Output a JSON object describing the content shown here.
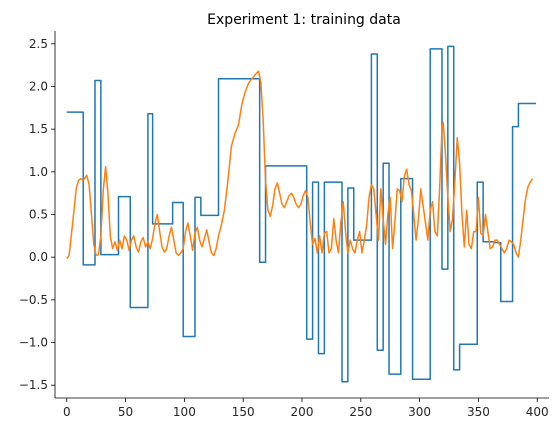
{
  "chart_data": {
    "type": "line",
    "title": "Experiment 1: training data",
    "xlabel": "",
    "ylabel": "",
    "xlim": [
      -10,
      410
    ],
    "ylim": [
      -1.65,
      2.65
    ],
    "grid": false,
    "xticks": [
      {
        "value": 0,
        "label": "0"
      },
      {
        "value": 50,
        "label": "50"
      },
      {
        "value": 100,
        "label": "100"
      },
      {
        "value": 150,
        "label": "150"
      },
      {
        "value": 200,
        "label": "200"
      },
      {
        "value": 250,
        "label": "250"
      },
      {
        "value": 300,
        "label": "300"
      },
      {
        "value": 350,
        "label": "350"
      },
      {
        "value": 400,
        "label": "400"
      }
    ],
    "yticks": [
      {
        "value": -1.5,
        "label": "−1.5"
      },
      {
        "value": -1.0,
        "label": "−1.0"
      },
      {
        "value": -0.5,
        "label": "−0.5"
      },
      {
        "value": 0.0,
        "label": "0.0"
      },
      {
        "value": 0.5,
        "label": "0.5"
      },
      {
        "value": 1.0,
        "label": "1.0"
      },
      {
        "value": 1.5,
        "label": "1.5"
      },
      {
        "value": 2.0,
        "label": "2.0"
      },
      {
        "value": 2.5,
        "label": "2.5"
      }
    ],
    "series": [
      {
        "color": "#1f77b4",
        "step": true,
        "points": [
          [
            0,
            1.7
          ],
          [
            14,
            1.7
          ],
          [
            14,
            -0.09
          ],
          [
            24,
            -0.09
          ],
          [
            24,
            2.07
          ],
          [
            29,
            2.07
          ],
          [
            29,
            0.03
          ],
          [
            44,
            0.03
          ],
          [
            44,
            0.71
          ],
          [
            54,
            0.71
          ],
          [
            54,
            -0.59
          ],
          [
            69,
            -0.59
          ],
          [
            69,
            1.68
          ],
          [
            73,
            1.68
          ],
          [
            73,
            0.39
          ],
          [
            90,
            0.39
          ],
          [
            90,
            0.64
          ],
          [
            99,
            0.64
          ],
          [
            99,
            -0.93
          ],
          [
            109,
            -0.93
          ],
          [
            109,
            0.7
          ],
          [
            114,
            0.7
          ],
          [
            114,
            0.49
          ],
          [
            129,
            0.49
          ],
          [
            129,
            2.09
          ],
          [
            164,
            2.09
          ],
          [
            164,
            -0.06
          ],
          [
            169,
            -0.06
          ],
          [
            169,
            1.07
          ],
          [
            204,
            1.07
          ],
          [
            204,
            -0.96
          ],
          [
            209,
            -0.96
          ],
          [
            209,
            0.88
          ],
          [
            214,
            0.88
          ],
          [
            214,
            -1.13
          ],
          [
            219,
            -1.13
          ],
          [
            219,
            0.88
          ],
          [
            234,
            0.88
          ],
          [
            234,
            -1.46
          ],
          [
            239,
            -1.46
          ],
          [
            239,
            0.81
          ],
          [
            244,
            0.81
          ],
          [
            244,
            0.2
          ],
          [
            259,
            0.2
          ],
          [
            259,
            2.38
          ],
          [
            264,
            2.38
          ],
          [
            264,
            -1.09
          ],
          [
            269,
            -1.09
          ],
          [
            269,
            1.1
          ],
          [
            274,
            1.1
          ],
          [
            274,
            -1.37
          ],
          [
            284,
            -1.37
          ],
          [
            284,
            0.92
          ],
          [
            294,
            0.92
          ],
          [
            294,
            -1.43
          ],
          [
            309,
            -1.43
          ],
          [
            309,
            2.44
          ],
          [
            319,
            2.44
          ],
          [
            319,
            -0.14
          ],
          [
            324,
            -0.14
          ],
          [
            324,
            2.47
          ],
          [
            329,
            2.47
          ],
          [
            329,
            -1.32
          ],
          [
            334,
            -1.32
          ],
          [
            334,
            -1.02
          ],
          [
            349,
            -1.02
          ],
          [
            349,
            0.88
          ],
          [
            354,
            0.88
          ],
          [
            354,
            0.18
          ],
          [
            364,
            0.18
          ],
          [
            364,
            0.17
          ],
          [
            369,
            0.17
          ],
          [
            369,
            -0.52
          ],
          [
            379,
            -0.52
          ],
          [
            379,
            1.53
          ],
          [
            384,
            1.53
          ],
          [
            384,
            1.8
          ],
          [
            399,
            1.8
          ]
        ]
      },
      {
        "color": "#ff7f0e",
        "step": false,
        "points": [
          [
            0,
            -0.02
          ],
          [
            2,
            0.02
          ],
          [
            5,
            0.4
          ],
          [
            8,
            0.8
          ],
          [
            10,
            0.9
          ],
          [
            12,
            0.92
          ],
          [
            14,
            0.9
          ],
          [
            17,
            0.96
          ],
          [
            19,
            0.85
          ],
          [
            21,
            0.5
          ],
          [
            23,
            0.15
          ],
          [
            25,
            0.02
          ],
          [
            27,
            0.03
          ],
          [
            29,
            0.25
          ],
          [
            31,
            0.78
          ],
          [
            33,
            1.06
          ],
          [
            35,
            0.75
          ],
          [
            37,
            0.25
          ],
          [
            39,
            0.1
          ],
          [
            41,
            0.18
          ],
          [
            43,
            0.08
          ],
          [
            45,
            0.2
          ],
          [
            47,
            0.1
          ],
          [
            49,
            0.25
          ],
          [
            51,
            0.2
          ],
          [
            53,
            0.08
          ],
          [
            55,
            0.2
          ],
          [
            57,
            0.25
          ],
          [
            59,
            0.12
          ],
          [
            61,
            0.06
          ],
          [
            63,
            0.18
          ],
          [
            65,
            0.23
          ],
          [
            67,
            0.12
          ],
          [
            69,
            0.18
          ],
          [
            71,
            0.1
          ],
          [
            73,
            0.22
          ],
          [
            75,
            0.4
          ],
          [
            77,
            0.5
          ],
          [
            79,
            0.3
          ],
          [
            81,
            0.12
          ],
          [
            83,
            0.06
          ],
          [
            85,
            0.1
          ],
          [
            87,
            0.25
          ],
          [
            89,
            0.35
          ],
          [
            91,
            0.2
          ],
          [
            93,
            0.05
          ],
          [
            95,
            0.02
          ],
          [
            97,
            0.05
          ],
          [
            99,
            0.1
          ],
          [
            101,
            0.3
          ],
          [
            103,
            0.4
          ],
          [
            105,
            0.25
          ],
          [
            107,
            0.08
          ],
          [
            109,
            0.28
          ],
          [
            111,
            0.35
          ],
          [
            113,
            0.2
          ],
          [
            115,
            0.12
          ],
          [
            117,
            0.22
          ],
          [
            119,
            0.32
          ],
          [
            121,
            0.18
          ],
          [
            123,
            0.05
          ],
          [
            125,
            0.02
          ],
          [
            127,
            0.1
          ],
          [
            129,
            0.25
          ],
          [
            131,
            0.35
          ],
          [
            134,
            0.55
          ],
          [
            137,
            0.9
          ],
          [
            140,
            1.3
          ],
          [
            143,
            1.45
          ],
          [
            146,
            1.55
          ],
          [
            149,
            1.8
          ],
          [
            152,
            1.95
          ],
          [
            155,
            2.05
          ],
          [
            158,
            2.1
          ],
          [
            161,
            2.15
          ],
          [
            163,
            2.18
          ],
          [
            165,
            2.05
          ],
          [
            167,
            1.6
          ],
          [
            169,
            0.9
          ],
          [
            171,
            0.55
          ],
          [
            173,
            0.48
          ],
          [
            175,
            0.6
          ],
          [
            177,
            0.8
          ],
          [
            179,
            0.87
          ],
          [
            181,
            0.75
          ],
          [
            183,
            0.62
          ],
          [
            185,
            0.58
          ],
          [
            187,
            0.65
          ],
          [
            189,
            0.72
          ],
          [
            191,
            0.75
          ],
          [
            193,
            0.7
          ],
          [
            195,
            0.62
          ],
          [
            197,
            0.58
          ],
          [
            199,
            0.62
          ],
          [
            201,
            0.72
          ],
          [
            203,
            0.78
          ],
          [
            205,
            0.7
          ],
          [
            207,
            0.4
          ],
          [
            209,
            0.15
          ],
          [
            211,
            0.22
          ],
          [
            213,
            0.05
          ],
          [
            215,
            0.25
          ],
          [
            217,
            0.05
          ],
          [
            219,
            0.28
          ],
          [
            221,
            0.3
          ],
          [
            223,
            0.05
          ],
          [
            225,
            0.1
          ],
          [
            227,
            0.45
          ],
          [
            229,
            0.2
          ],
          [
            231,
            0.05
          ],
          [
            233,
            0.4
          ],
          [
            235,
            0.65
          ],
          [
            237,
            0.3
          ],
          [
            239,
            0.05
          ],
          [
            241,
            0.2
          ],
          [
            243,
            0.1
          ],
          [
            245,
            0.05
          ],
          [
            247,
            0.2
          ],
          [
            249,
            0.3
          ],
          [
            251,
            0.05
          ],
          [
            253,
            0.2
          ],
          [
            255,
            0.38
          ],
          [
            257,
            0.7
          ],
          [
            259,
            0.85
          ],
          [
            261,
            0.8
          ],
          [
            263,
            0.5
          ],
          [
            265,
            0.2
          ],
          [
            267,
            0.8
          ],
          [
            269,
            0.45
          ],
          [
            271,
            0.15
          ],
          [
            273,
            0.5
          ],
          [
            275,
            0.7
          ],
          [
            277,
            0.1
          ],
          [
            279,
            0.42
          ],
          [
            281,
            0.8
          ],
          [
            283,
            0.78
          ],
          [
            285,
            0.65
          ],
          [
            287,
            0.95
          ],
          [
            289,
            1.03
          ],
          [
            291,
            0.85
          ],
          [
            293,
            0.78
          ],
          [
            295,
            0.5
          ],
          [
            297,
            0.2
          ],
          [
            299,
            0.45
          ],
          [
            301,
            0.8
          ],
          [
            303,
            0.6
          ],
          [
            305,
            0.4
          ],
          [
            307,
            0.2
          ],
          [
            309,
            0.55
          ],
          [
            311,
            0.65
          ],
          [
            313,
            0.3
          ],
          [
            315,
            0.25
          ],
          [
            317,
            0.8
          ],
          [
            319,
            1.5
          ],
          [
            320,
            1.58
          ],
          [
            322,
            1.2
          ],
          [
            324,
            0.7
          ],
          [
            326,
            0.3
          ],
          [
            328,
            0.45
          ],
          [
            330,
            0.9
          ],
          [
            332,
            1.4
          ],
          [
            334,
            1.1
          ],
          [
            336,
            0.5
          ],
          [
            338,
            0.12
          ],
          [
            340,
            0.55
          ],
          [
            342,
            0.15
          ],
          [
            344,
            0.1
          ],
          [
            346,
            0.3
          ],
          [
            348,
            0.3
          ],
          [
            350,
            0.7
          ],
          [
            352,
            0.28
          ],
          [
            354,
            0.25
          ],
          [
            356,
            0.5
          ],
          [
            358,
            0.3
          ],
          [
            360,
            0.1
          ],
          [
            362,
            0.12
          ],
          [
            364,
            0.2
          ],
          [
            366,
            0.2
          ],
          [
            368,
            0.15
          ],
          [
            370,
            0.1
          ],
          [
            372,
            0.05
          ],
          [
            374,
            0.1
          ],
          [
            376,
            0.2
          ],
          [
            378,
            0.18
          ],
          [
            380,
            0.15
          ],
          [
            382,
            0.05
          ],
          [
            384,
            0.0
          ],
          [
            386,
            0.2
          ],
          [
            388,
            0.45
          ],
          [
            390,
            0.68
          ],
          [
            392,
            0.82
          ],
          [
            394,
            0.88
          ],
          [
            396,
            0.92
          ]
        ]
      }
    ]
  }
}
